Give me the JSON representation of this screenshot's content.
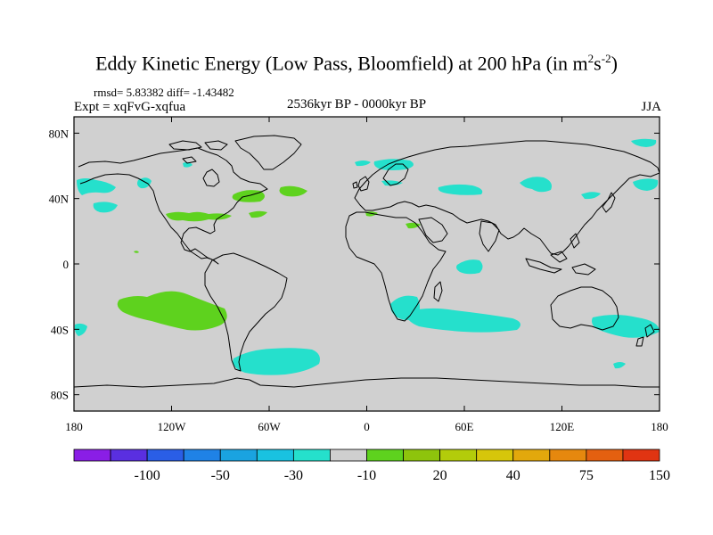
{
  "title": {
    "main": "Eddy Kinetic Energy (Low Pass, Bloomfield) at 200 hPa (in m",
    "sup1": "2",
    "s": "s",
    "sup2": "-2",
    "close": ")"
  },
  "stats": "rmsd= 5.83382 diff= -1.43482",
  "experiment": "Expt = xqFvG-xqfua",
  "period": "2536kyr BP - 0000kyr BP",
  "season": "JJA",
  "map": {
    "lon_ticks": [
      "180",
      "120W",
      "60W",
      "0",
      "60E",
      "120E",
      "180"
    ],
    "lat_ticks": [
      "80N",
      "40N",
      "0",
      "40S",
      "80S"
    ],
    "background_color": "#d0d0d0",
    "coastline_color": "#000000"
  },
  "colorbar": {
    "colors": [
      "#8a1ee6",
      "#5a2fe0",
      "#2a5ee6",
      "#1f82e6",
      "#1aa3e0",
      "#19c2e0",
      "#25e0cc",
      "#cfcfcf",
      "#5ed21e",
      "#8ec40c",
      "#b3cc0a",
      "#d6c60a",
      "#e2a80c",
      "#e6880e",
      "#e46010",
      "#e03412"
    ],
    "labels": [
      "-100",
      "-50",
      "-30",
      "-10",
      "20",
      "40",
      "75",
      "150"
    ]
  },
  "field_colors": {
    "negative": "#25e0cc",
    "positive": "#5ed21e"
  }
}
